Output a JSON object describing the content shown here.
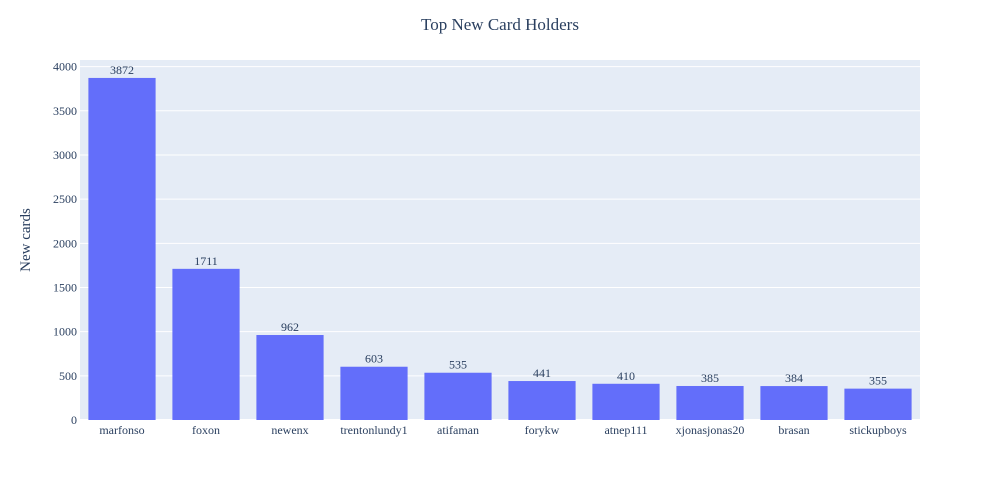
{
  "chart_data": {
    "type": "bar",
    "title": "Top New Card Holders",
    "xlabel": "",
    "ylabel": "New cards",
    "categories": [
      "marfonso",
      "foxon",
      "newenx",
      "trentonlundy1",
      "atifaman",
      "forykw",
      "atnep111",
      "xjonasjonas20",
      "brasan",
      "stickupboys"
    ],
    "values": [
      3872,
      1711,
      962,
      603,
      535,
      441,
      410,
      385,
      384,
      355
    ],
    "ylim": [
      0,
      4075
    ],
    "yticks": [
      0,
      500,
      1000,
      1500,
      2000,
      2500,
      3000,
      3500,
      4000
    ],
    "grid": true,
    "bar_color": "#636efa",
    "plot_bg": "#e5ecf6",
    "grid_color": "#ffffff",
    "text_color": "#2a3f5f"
  }
}
